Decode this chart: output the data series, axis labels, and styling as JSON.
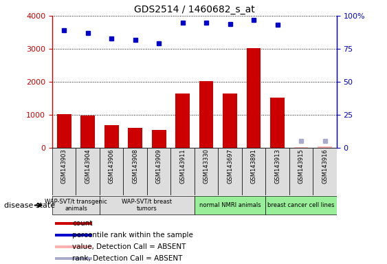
{
  "title": "GDS2514 / 1460682_s_at",
  "samples": [
    "GSM143903",
    "GSM143904",
    "GSM143906",
    "GSM143908",
    "GSM143909",
    "GSM143911",
    "GSM143330",
    "GSM143697",
    "GSM143891",
    "GSM143913",
    "GSM143915",
    "GSM143916"
  ],
  "counts": [
    1020,
    970,
    680,
    610,
    540,
    1640,
    2020,
    1650,
    3030,
    1520,
    30,
    50
  ],
  "absent_flags": [
    false,
    false,
    false,
    false,
    false,
    false,
    false,
    false,
    false,
    false,
    true,
    true
  ],
  "percentile_ranks": [
    89,
    87,
    83,
    82,
    79,
    95,
    95,
    94,
    97,
    93,
    null,
    null
  ],
  "absent_rank": [
    null,
    null,
    null,
    null,
    null,
    null,
    null,
    null,
    null,
    null,
    5,
    5
  ],
  "ylim_left": [
    0,
    4000
  ],
  "ylim_right": [
    0,
    100
  ],
  "yticks_left": [
    0,
    1000,
    2000,
    3000,
    4000
  ],
  "ytick_labels_right": [
    "0",
    "25",
    "50",
    "75",
    "100%"
  ],
  "bar_color": "#cc0000",
  "dot_color": "#0000cc",
  "absent_bar_color": "#ffb0b0",
  "absent_rank_color": "#aaaacc",
  "bg_color": "#ffffff",
  "groups": [
    {
      "label": "WAP-SVT/t transgenic\nanimals",
      "indices": [
        0,
        1
      ],
      "color": "#dddddd"
    },
    {
      "label": "WAP-SVT/t breast\ntumors",
      "indices": [
        2,
        3,
        4,
        5
      ],
      "color": "#dddddd"
    },
    {
      "label": "normal NMRI animals",
      "indices": [
        6,
        7,
        8
      ],
      "color": "#99ee99"
    },
    {
      "label": "breast cancer cell lines",
      "indices": [
        9,
        10,
        11
      ],
      "color": "#99ee99"
    }
  ],
  "legend_items": [
    {
      "label": "count",
      "color": "#cc0000"
    },
    {
      "label": "percentile rank within the sample",
      "color": "#0000cc"
    },
    {
      "label": "value, Detection Call = ABSENT",
      "color": "#ffb0b0"
    },
    {
      "label": "rank, Detection Call = ABSENT",
      "color": "#aaaacc"
    }
  ],
  "disease_state_label": "disease state"
}
